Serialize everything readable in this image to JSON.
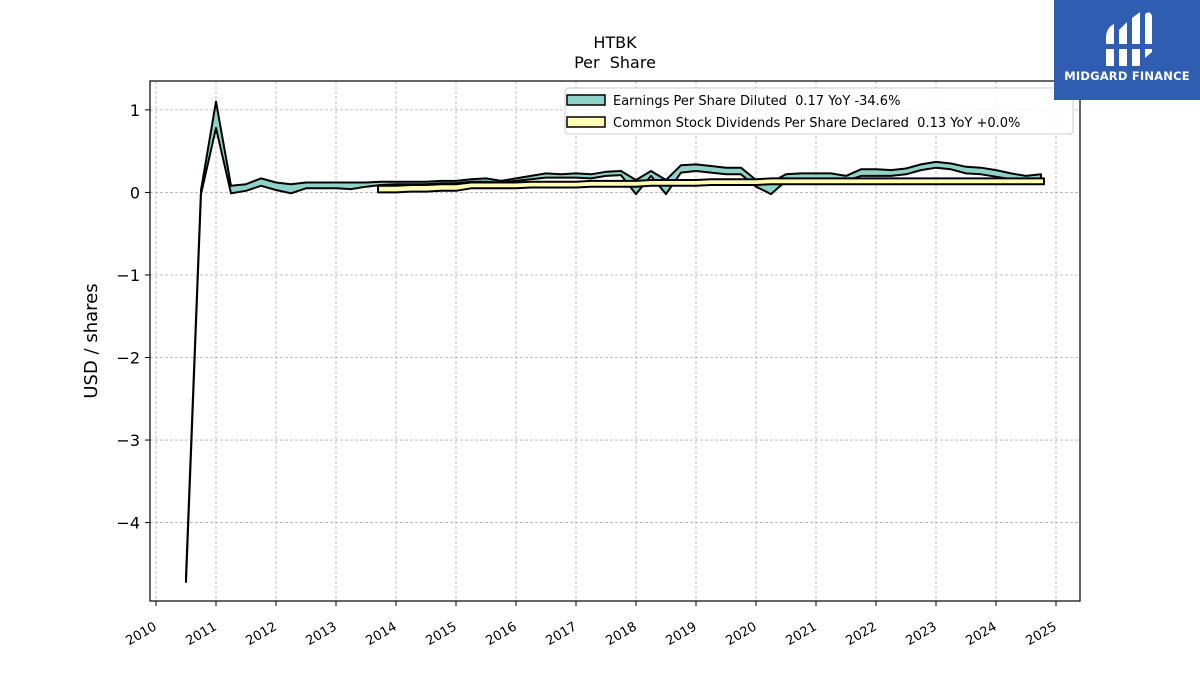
{
  "brand": {
    "name": "MIDGARD FINANCE",
    "bg_color": "#2f5db0"
  },
  "chart_data": {
    "type": "area",
    "title": "HTBK",
    "subtitle": "Per  Share",
    "xlabel": "",
    "ylabel": "USD / shares",
    "xlim": [
      2009.9,
      2025.4
    ],
    "ylim": [
      -4.95,
      1.35
    ],
    "x_ticks": [
      "2010",
      "2011",
      "2012",
      "2013",
      "2014",
      "2015",
      "2016",
      "2017",
      "2018",
      "2019",
      "2020",
      "2021",
      "2022",
      "2023",
      "2024",
      "2025"
    ],
    "y_ticks": [
      1,
      0,
      -1,
      -2,
      -3,
      -4
    ],
    "grid": true,
    "legend_position": "top-right",
    "series": [
      {
        "name": "Earnings Per Share Diluted",
        "legend_label": "Earnings Per Share Diluted  0.17 YoY -34.6%",
        "color": "#8dd3c7",
        "x": [
          2010.5,
          2010.75,
          2011.0,
          2011.25,
          2011.5,
          2011.75,
          2012.0,
          2012.25,
          2012.5,
          2012.75,
          2013.0,
          2013.25,
          2013.5,
          2013.75,
          2014.0,
          2014.25,
          2014.5,
          2014.75,
          2015.0,
          2015.25,
          2015.5,
          2015.75,
          2016.0,
          2016.25,
          2016.5,
          2016.75,
          2017.0,
          2017.25,
          2017.5,
          2017.75,
          2018.0,
          2018.25,
          2018.5,
          2018.75,
          2019.0,
          2019.25,
          2019.5,
          2019.75,
          2020.0,
          2020.25,
          2020.5,
          2020.75,
          2021.0,
          2021.25,
          2021.5,
          2021.75,
          2022.0,
          2022.25,
          2022.5,
          2022.75,
          2023.0,
          2023.25,
          2023.5,
          2023.75,
          2024.0,
          2024.25,
          2024.5,
          2024.75
        ],
        "upper": [
          -4.65,
          0.03,
          1.1,
          0.08,
          0.1,
          0.17,
          0.12,
          0.1,
          0.12,
          0.12,
          0.12,
          0.12,
          0.12,
          0.13,
          0.13,
          0.13,
          0.13,
          0.14,
          0.14,
          0.16,
          0.17,
          0.14,
          0.17,
          0.2,
          0.23,
          0.22,
          0.23,
          0.22,
          0.25,
          0.26,
          0.15,
          0.26,
          0.15,
          0.33,
          0.34,
          0.32,
          0.3,
          0.3,
          0.15,
          0.12,
          0.22,
          0.23,
          0.23,
          0.23,
          0.2,
          0.28,
          0.28,
          0.27,
          0.29,
          0.34,
          0.37,
          0.35,
          0.31,
          0.3,
          0.27,
          0.23,
          0.2,
          0.22
        ],
        "lower": [
          -4.72,
          -0.02,
          0.78,
          -0.01,
          0.02,
          0.08,
          0.03,
          -0.01,
          0.05,
          0.05,
          0.05,
          0.04,
          0.07,
          0.09,
          0.1,
          0.1,
          0.1,
          0.11,
          0.11,
          0.13,
          0.13,
          0.12,
          0.14,
          0.16,
          0.18,
          0.18,
          0.18,
          0.17,
          0.2,
          0.21,
          -0.02,
          0.2,
          -0.02,
          0.24,
          0.26,
          0.24,
          0.22,
          0.22,
          0.07,
          -0.02,
          0.14,
          0.15,
          0.15,
          0.15,
          0.14,
          0.2,
          0.2,
          0.2,
          0.22,
          0.27,
          0.3,
          0.28,
          0.23,
          0.22,
          0.19,
          0.16,
          0.15,
          0.16
        ]
      },
      {
        "name": "Common Stock Dividends Per Share Declared",
        "legend_label": "Common Stock Dividends Per Share Declared  0.13 YoY +0.0%",
        "color": "#ffffb3",
        "x": [
          2013.7,
          2014.0,
          2014.25,
          2014.5,
          2014.75,
          2015.0,
          2015.25,
          2015.5,
          2015.75,
          2016.0,
          2016.25,
          2016.5,
          2016.75,
          2017.0,
          2017.25,
          2017.5,
          2017.75,
          2018.0,
          2018.25,
          2018.5,
          2018.75,
          2019.0,
          2019.25,
          2019.5,
          2019.75,
          2020.0,
          2020.25,
          2020.5,
          2020.75,
          2021.0,
          2021.25,
          2021.5,
          2021.75,
          2022.0,
          2022.25,
          2022.5,
          2022.75,
          2023.0,
          2023.25,
          2023.5,
          2023.75,
          2024.0,
          2024.25,
          2024.5,
          2024.8
        ],
        "upper": [
          0.08,
          0.08,
          0.09,
          0.09,
          0.1,
          0.1,
          0.12,
          0.12,
          0.12,
          0.12,
          0.13,
          0.13,
          0.13,
          0.13,
          0.14,
          0.14,
          0.14,
          0.14,
          0.15,
          0.15,
          0.15,
          0.15,
          0.16,
          0.16,
          0.16,
          0.16,
          0.17,
          0.17,
          0.17,
          0.17,
          0.17,
          0.17,
          0.17,
          0.17,
          0.17,
          0.17,
          0.17,
          0.17,
          0.17,
          0.17,
          0.17,
          0.17,
          0.17,
          0.17,
          0.17
        ],
        "lower": [
          0.0,
          0.0,
          0.01,
          0.01,
          0.02,
          0.02,
          0.05,
          0.05,
          0.05,
          0.05,
          0.06,
          0.06,
          0.06,
          0.06,
          0.07,
          0.07,
          0.07,
          0.07,
          0.08,
          0.08,
          0.08,
          0.08,
          0.09,
          0.09,
          0.09,
          0.09,
          0.1,
          0.1,
          0.1,
          0.1,
          0.1,
          0.1,
          0.1,
          0.1,
          0.1,
          0.1,
          0.1,
          0.1,
          0.1,
          0.1,
          0.1,
          0.1,
          0.1,
          0.1,
          0.1
        ]
      }
    ]
  }
}
